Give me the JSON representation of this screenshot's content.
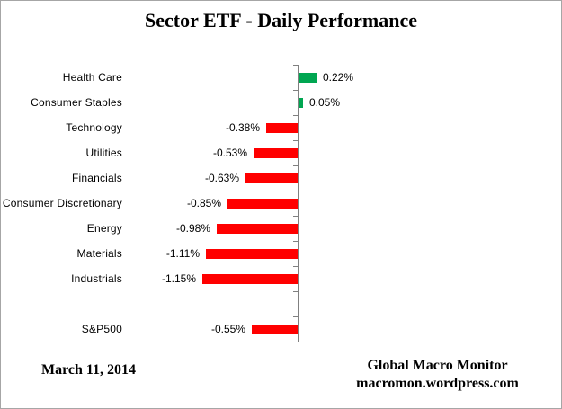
{
  "title": "Sector ETF - Daily Performance",
  "chart_data": {
    "type": "bar",
    "orientation": "horizontal",
    "title": "Sector ETF - Daily Performance",
    "categories": [
      "Health Care",
      "Consumer Staples",
      "Technology",
      "Utilities",
      "Financials",
      "Consumer Discretionary",
      "Energy",
      "Materials",
      "Industrials",
      "S&P500"
    ],
    "values": [
      0.22,
      0.05,
      -0.38,
      -0.53,
      -0.63,
      -0.85,
      -0.98,
      -1.11,
      -1.15,
      -0.55
    ],
    "value_labels": [
      "0.22%",
      "0.05%",
      "-0.38%",
      "-0.53%",
      "-0.63%",
      "-0.85%",
      "-0.98%",
      "-1.11%",
      "-1.15%",
      "-0.55%"
    ],
    "separator_before_index": 9,
    "unit": "percent",
    "xlim": [
      -1.3,
      0.4
    ],
    "gridlines": false,
    "value_label_position": "outside-end",
    "legend": "none",
    "colors": {
      "positive": "#00a651",
      "negative": "#ff0000",
      "axis": "#808080",
      "text": "#000000"
    }
  },
  "footer": {
    "date": "March 11, 2014",
    "source_line1": "Global Macro Monitor",
    "source_line2": "macromon.wordpress.com"
  }
}
